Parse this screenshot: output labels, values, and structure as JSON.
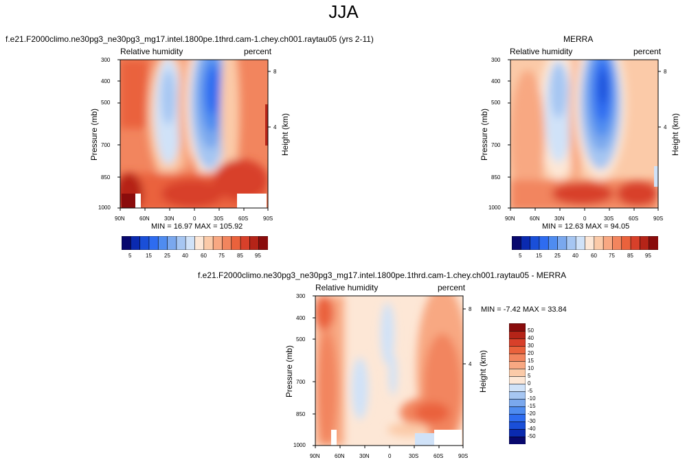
{
  "title": "JJA",
  "panels": [
    {
      "title": "f.e21.F2000climo.ne30pg3_ne30pg3_mg17.intel.1800pe.1thrd.cam-1.chey.ch001.raytau05 (yrs 2-11)",
      "left_label": "Relative humidity",
      "right_label": "percent",
      "stats": "MIN = 16.97  MAX = 105.92"
    },
    {
      "title": "MERRA",
      "left_label": "Relative humidity",
      "right_label": "percent",
      "stats": "MIN = 12.63  MAX = 94.05"
    },
    {
      "title": "f.e21.F2000climo.ne30pg3_ne30pg3_mg17.intel.1800pe.1thrd.cam-1.chey.ch001.raytau05 - MERRA",
      "left_label": "Relative humidity",
      "right_label": "percent",
      "stats": "MIN = -7.42  MAX = 33.84"
    }
  ],
  "axes": {
    "ylabel": "Pressure (mb)",
    "y2label": "Height (km)",
    "x_ticks": [
      "90N",
      "60N",
      "30N",
      "0",
      "30S",
      "60S",
      "90S"
    ],
    "y_ticks": [
      "300",
      "400",
      "500",
      "700",
      "850",
      "1000"
    ],
    "y2_ticks": [
      "8",
      "4"
    ]
  },
  "colorbars": {
    "rh": {
      "colors": [
        "#08086e",
        "#0a2ab0",
        "#1a4fd8",
        "#2e6cf0",
        "#4f8cf0",
        "#7aa8ee",
        "#a6c6f2",
        "#d0e2f8",
        "#fde7d6",
        "#fbcaa8",
        "#f8a882",
        "#f2855e",
        "#ea623c",
        "#d8402a",
        "#b52418",
        "#8a0c0c"
      ],
      "labels": [
        "5",
        "15",
        "25",
        "40",
        "60",
        "75",
        "85",
        "95"
      ]
    },
    "diff": {
      "colors": [
        "#08086e",
        "#0a2ab0",
        "#1a4fd8",
        "#2e6cf0",
        "#4f8cf0",
        "#7aa8ee",
        "#a6c6f2",
        "#d0e2f8",
        "#fde7d6",
        "#fbcaa8",
        "#f8a882",
        "#f2855e",
        "#ea623c",
        "#d8402a",
        "#b52418",
        "#8a0c0c"
      ],
      "labels": [
        "-50",
        "-40",
        "-30",
        "-20",
        "-15",
        "-10",
        "-5",
        "0",
        "5",
        "10",
        "15",
        "20",
        "30",
        "40",
        "50"
      ]
    }
  },
  "chart_data": [
    {
      "type": "heatmap",
      "title": "f.e21.F2000climo.ne30pg3_ne30pg3_mg17.intel.1800pe.1thrd.cam-1.chey.ch001.raytau05 (yrs 2-11)",
      "xlabel": "",
      "ylabel": "Pressure (mb)",
      "y2label": "Height (km)",
      "x_categories": [
        "90N",
        "60N",
        "30N",
        "0",
        "30S",
        "60S",
        "90S"
      ],
      "y_levels_mb": [
        300,
        400,
        500,
        700,
        850,
        1000
      ],
      "variable": "Relative humidity",
      "units": "percent",
      "min": 16.97,
      "max": 105.92,
      "grid": false
    },
    {
      "type": "heatmap",
      "title": "MERRA",
      "xlabel": "",
      "ylabel": "Pressure (mb)",
      "y2label": "Height (km)",
      "x_categories": [
        "90N",
        "60N",
        "30N",
        "0",
        "30S",
        "60S",
        "90S"
      ],
      "y_levels_mb": [
        300,
        400,
        500,
        700,
        850,
        1000
      ],
      "variable": "Relative humidity",
      "units": "percent",
      "min": 12.63,
      "max": 94.05,
      "grid": false
    },
    {
      "type": "heatmap",
      "title": "f.e21.F2000climo.ne30pg3_ne30pg3_mg17.intel.1800pe.1thrd.cam-1.chey.ch001.raytau05 - MERRA",
      "xlabel": "",
      "ylabel": "Pressure (mb)",
      "y2label": "Height (km)",
      "x_categories": [
        "90N",
        "60N",
        "30N",
        "0",
        "30S",
        "60S",
        "90S"
      ],
      "y_levels_mb": [
        300,
        400,
        500,
        700,
        850,
        1000
      ],
      "variable": "Relative humidity",
      "units": "percent",
      "min": -7.42,
      "max": 33.84,
      "grid": false
    }
  ]
}
